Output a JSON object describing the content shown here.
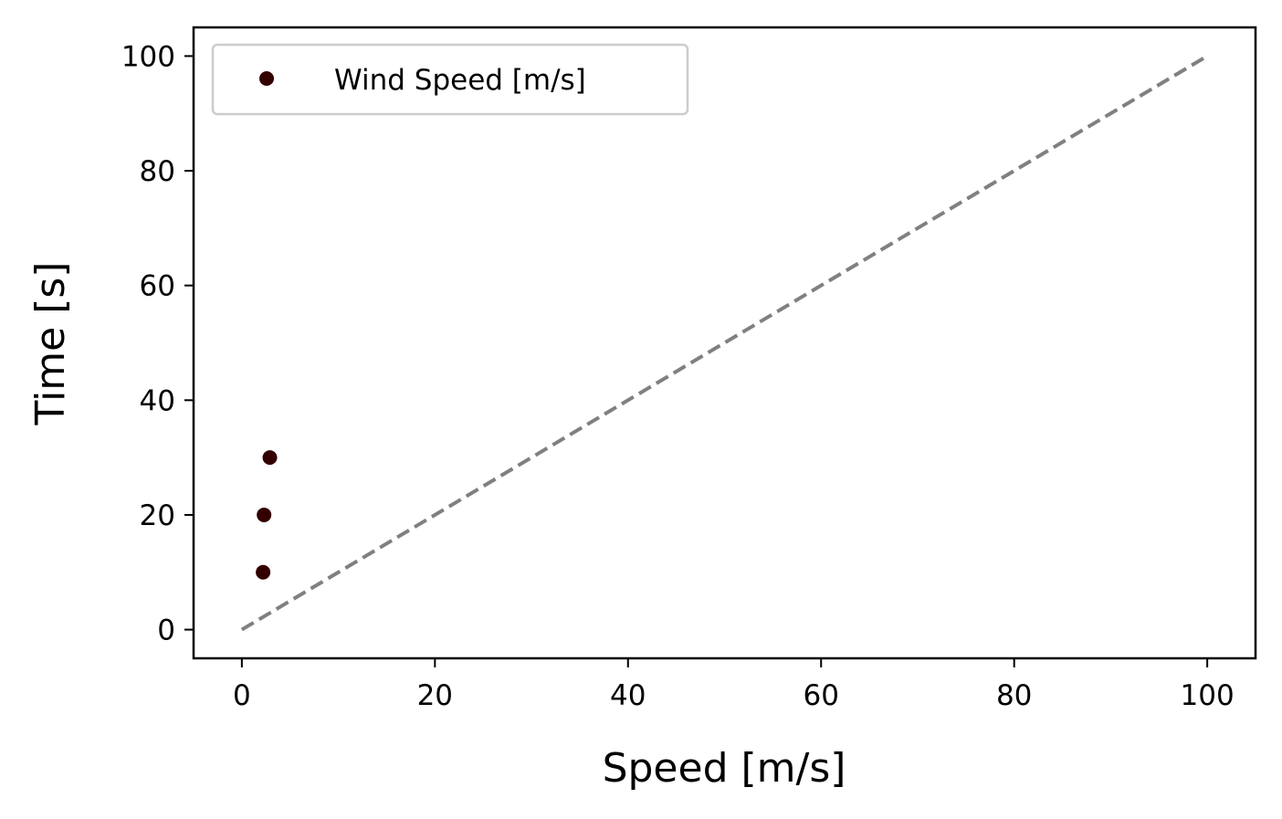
{
  "chart_data": {
    "type": "scatter",
    "xlabel": "Speed [m/s]",
    "ylabel": "Time [s]",
    "xlim": [
      -5,
      105
    ],
    "ylim": [
      -5,
      105
    ],
    "x_ticks": [
      0,
      20,
      40,
      60,
      80,
      100
    ],
    "y_ticks": [
      0,
      20,
      40,
      60,
      80,
      100
    ],
    "x_tick_labels": [
      "0",
      "20",
      "40",
      "60",
      "80",
      "100"
    ],
    "y_tick_labels": [
      "0",
      "20",
      "40",
      "60",
      "80",
      "100"
    ],
    "grid": false,
    "legend_position": "top-left",
    "series": [
      {
        "name": "Wind Speed [m/s]",
        "type": "scatter",
        "color": "#330000",
        "points": [
          {
            "x": 2.2,
            "y": 10
          },
          {
            "x": 2.3,
            "y": 20
          },
          {
            "x": 2.9,
            "y": 30
          }
        ]
      }
    ],
    "reference_line": {
      "style": "dashed",
      "color": "#808080",
      "points": [
        {
          "x": 0,
          "y": 0
        },
        {
          "x": 100,
          "y": 100
        }
      ]
    }
  }
}
